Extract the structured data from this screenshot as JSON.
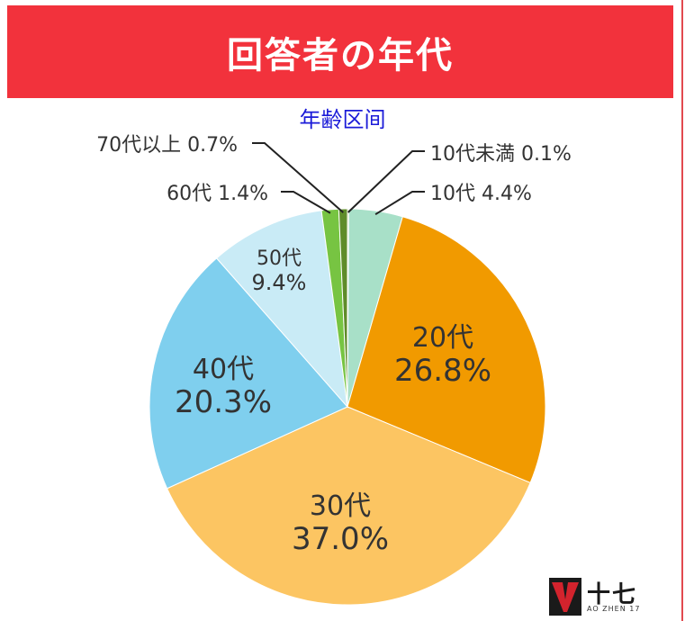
{
  "header": {
    "title": "回答者の年代"
  },
  "chart_data": {
    "type": "pie",
    "title": "年齢区间",
    "slices": [
      {
        "label": "10代未満",
        "value": 0.1,
        "display": "0.1%",
        "color": "#9aa838"
      },
      {
        "label": "10代",
        "value": 4.4,
        "display": "4.4%",
        "color": "#a8e0c8"
      },
      {
        "label": "20代",
        "value": 26.8,
        "display": "26.8%",
        "color": "#f19a00"
      },
      {
        "label": "30代",
        "value": 37.0,
        "display": "37.0%",
        "color": "#fcc562"
      },
      {
        "label": "40代",
        "value": 20.3,
        "display": "20.3%",
        "color": "#7fcfee"
      },
      {
        "label": "50代",
        "value": 9.4,
        "display": "9.4%",
        "color": "#c9ebf6"
      },
      {
        "label": "60代",
        "value": 1.4,
        "display": "1.4%",
        "color": "#77c442"
      },
      {
        "label": "70代以上",
        "value": 0.7,
        "display": "0.7%",
        "color": "#5f8c2a"
      }
    ]
  },
  "logo": {
    "text": "十七",
    "subtext": "AO ZHEN 17",
    "mark_color": "#d3232d"
  }
}
